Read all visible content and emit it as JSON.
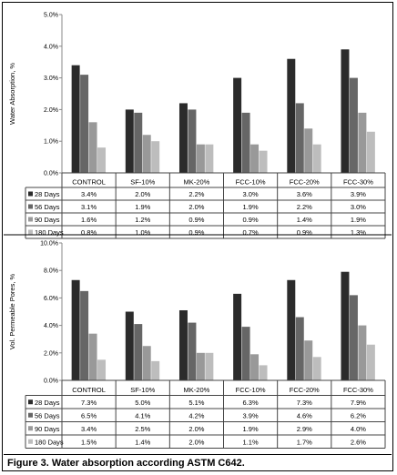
{
  "caption": "Figure 3. Water absorption according ASTM C642.",
  "colors": {
    "28 Days": "#2b2b2b",
    "56 Days": "#666666",
    "90 Days": "#999999",
    "180 Days": "#bdbdbd"
  },
  "chart_data": [
    {
      "type": "bar",
      "title": "",
      "xlabel": "",
      "ylabel": "Water Absorption, %",
      "ylim": [
        0,
        5
      ],
      "yticks": [
        "0.0%",
        "1.0%",
        "2.0%",
        "3.0%",
        "4.0%",
        "5.0%"
      ],
      "ytick_values": [
        0,
        1,
        2,
        3,
        4,
        5
      ],
      "categories": [
        "CONTROL",
        "SF-10%",
        "MK-20%",
        "FCC-10%",
        "FCC-20%",
        "FCC-30%"
      ],
      "series": [
        {
          "name": "28 Days",
          "values": [
            3.4,
            2.0,
            2.2,
            3.0,
            3.6,
            3.9
          ],
          "labels": [
            "3.4%",
            "2.0%",
            "2.2%",
            "3.0%",
            "3.6%",
            "3.9%"
          ]
        },
        {
          "name": "56 Days",
          "values": [
            3.1,
            1.9,
            2.0,
            1.9,
            2.2,
            3.0
          ],
          "labels": [
            "3.1%",
            "1.9%",
            "2.0%",
            "1.9%",
            "2.2%",
            "3.0%"
          ]
        },
        {
          "name": "90 Days",
          "values": [
            1.6,
            1.2,
            0.9,
            0.9,
            1.4,
            1.9
          ],
          "labels": [
            "1.6%",
            "1.2%",
            "0.9%",
            "0.9%",
            "1.4%",
            "1.9%"
          ]
        },
        {
          "name": "180 Days",
          "values": [
            0.8,
            1.0,
            0.9,
            0.7,
            0.9,
            1.3
          ],
          "labels": [
            "0.8%",
            "1.0%",
            "0.9%",
            "0.7%",
            "0.9%",
            "1.3%"
          ]
        }
      ],
      "grid": false,
      "legend": "data-table"
    },
    {
      "type": "bar",
      "title": "",
      "xlabel": "",
      "ylabel": "Vol. Permeable Pores, %",
      "ylim": [
        0,
        10
      ],
      "yticks": [
        "0.0%",
        "2.0%",
        "4.0%",
        "6.0%",
        "8.0%",
        "10.0%"
      ],
      "ytick_values": [
        0,
        2,
        4,
        6,
        8,
        10
      ],
      "categories": [
        "CONTROL",
        "SF-10%",
        "MK-20%",
        "FCC-10%",
        "FCC-20%",
        "FCC-30%"
      ],
      "series": [
        {
          "name": "28 Days",
          "values": [
            7.3,
            5.0,
            5.1,
            6.3,
            7.3,
            7.9
          ],
          "labels": [
            "7.3%",
            "5.0%",
            "5.1%",
            "6.3%",
            "7.3%",
            "7.9%"
          ]
        },
        {
          "name": "56 Days",
          "values": [
            6.5,
            4.1,
            4.2,
            3.9,
            4.6,
            6.2
          ],
          "labels": [
            "6.5%",
            "4.1%",
            "4.2%",
            "3.9%",
            "4.6%",
            "6.2%"
          ]
        },
        {
          "name": "90 Days",
          "values": [
            3.4,
            2.5,
            2.0,
            1.9,
            2.9,
            4.0
          ],
          "labels": [
            "3.4%",
            "2.5%",
            "2.0%",
            "1.9%",
            "2.9%",
            "4.0%"
          ]
        },
        {
          "name": "180 Days",
          "values": [
            1.5,
            1.4,
            2.0,
            1.1,
            1.7,
            2.6
          ],
          "labels": [
            "1.5%",
            "1.4%",
            "2.0%",
            "1.1%",
            "1.7%",
            "2.6%"
          ]
        }
      ],
      "grid": false,
      "legend": "data-table"
    }
  ]
}
